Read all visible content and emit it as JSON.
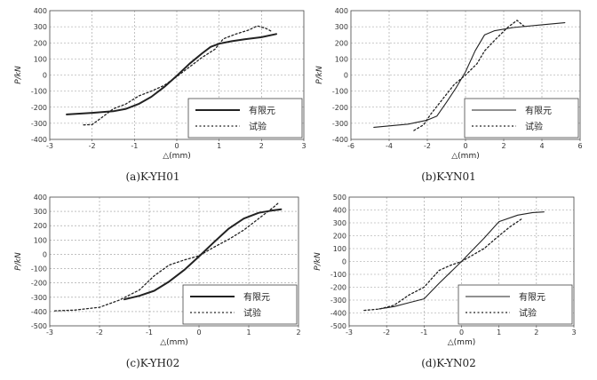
{
  "chart_data": [
    {
      "type": "line",
      "caption": "(a)K-YH01",
      "xlabel": "△(mm)",
      "ylabel": "P/kN",
      "xlim": [
        -3,
        3
      ],
      "ylim": [
        -400,
        400
      ],
      "xticks": [
        -3,
        -2,
        -1,
        0,
        1,
        2,
        3
      ],
      "yticks": [
        -400,
        -300,
        -200,
        -100,
        0,
        100,
        200,
        300,
        400
      ],
      "grid": true,
      "legend_position": "bottom-right",
      "series": [
        {
          "name": "有限元",
          "style": "solid-thick",
          "x": [
            -2.6,
            -2.0,
            -1.5,
            -1.2,
            -0.9,
            -0.6,
            -0.3,
            0.0,
            0.3,
            0.6,
            0.8,
            1.0,
            1.3,
            1.6,
            2.0,
            2.35
          ],
          "y": [
            -245,
            -235,
            -225,
            -210,
            -180,
            -135,
            -75,
            -5,
            70,
            135,
            175,
            195,
            210,
            222,
            235,
            255
          ]
        },
        {
          "name": "试验",
          "style": "dotted",
          "x": [
            -2.2,
            -2.0,
            -1.8,
            -1.5,
            -1.2,
            -0.9,
            -0.6,
            -0.3,
            0.0,
            0.3,
            0.6,
            0.9,
            1.1,
            1.4,
            1.7,
            1.9,
            2.1,
            2.25
          ],
          "y": [
            -310,
            -308,
            -270,
            -210,
            -180,
            -130,
            -100,
            -65,
            -10,
            50,
            110,
            160,
            225,
            255,
            280,
            305,
            290,
            270
          ]
        }
      ]
    },
    {
      "type": "line",
      "caption": "(b)K-YN01",
      "xlabel": "△(mm)",
      "ylabel": "P/kN",
      "xlim": [
        -6,
        6
      ],
      "ylim": [
        -400,
        400
      ],
      "xticks": [
        -6,
        -4,
        -2,
        0,
        2,
        4,
        6
      ],
      "yticks": [
        -400,
        -300,
        -200,
        -100,
        0,
        100,
        200,
        300,
        400
      ],
      "grid": true,
      "legend_position": "bottom-right",
      "series": [
        {
          "name": "有限元",
          "style": "solid",
          "x": [
            -4.8,
            -3.0,
            -2.0,
            -1.5,
            -1.0,
            -0.5,
            0.0,
            0.5,
            1.0,
            1.5,
            2.5,
            4.0,
            5.2
          ],
          "y": [
            -325,
            -305,
            -280,
            -255,
            -170,
            -80,
            20,
            150,
            250,
            275,
            295,
            312,
            325
          ]
        },
        {
          "name": "试验",
          "style": "dotted",
          "x": [
            -2.7,
            -2.2,
            -1.8,
            -1.2,
            -0.6,
            0.0,
            0.6,
            1.0,
            1.6,
            2.2,
            2.7,
            3.1
          ],
          "y": [
            -345,
            -310,
            -240,
            -150,
            -60,
            0,
            70,
            150,
            225,
            295,
            340,
            300
          ]
        }
      ]
    },
    {
      "type": "line",
      "caption": "(c)K-YH02",
      "xlabel": "△(mm)",
      "ylabel": "P/kN",
      "xlim": [
        -3,
        2
      ],
      "ylim": [
        -500,
        400
      ],
      "xticks": [
        -3,
        -2,
        -1,
        0,
        1,
        2
      ],
      "yticks": [
        -500,
        -400,
        -300,
        -200,
        -100,
        0,
        100,
        200,
        300,
        400
      ],
      "grid": true,
      "legend_position": "bottom-right",
      "series": [
        {
          "name": "有限元",
          "style": "solid-thick",
          "x": [
            -1.5,
            -1.2,
            -0.9,
            -0.6,
            -0.3,
            0.0,
            0.3,
            0.6,
            0.9,
            1.2,
            1.45,
            1.65
          ],
          "y": [
            -315,
            -290,
            -255,
            -190,
            -110,
            -15,
            85,
            180,
            250,
            290,
            305,
            315
          ]
        },
        {
          "name": "试验",
          "style": "dotted",
          "x": [
            -2.9,
            -2.5,
            -2.0,
            -1.6,
            -1.2,
            -0.9,
            -0.6,
            -0.3,
            0.0,
            0.3,
            0.6,
            0.9,
            1.2,
            1.5,
            1.6
          ],
          "y": [
            -395,
            -390,
            -370,
            -320,
            -250,
            -150,
            -75,
            -40,
            -10,
            50,
            105,
            170,
            250,
            330,
            360
          ]
        }
      ]
    },
    {
      "type": "line",
      "caption": "(d)K-YN02",
      "xlabel": "△(mm)",
      "ylabel": "P/kN",
      "xlim": [
        -3,
        3
      ],
      "ylim": [
        -500,
        500
      ],
      "xticks": [
        -3,
        -2,
        -1,
        0,
        1,
        2,
        3
      ],
      "yticks": [
        -500,
        -400,
        -300,
        -200,
        -100,
        0,
        100,
        200,
        300,
        400,
        500
      ],
      "grid": true,
      "legend_position": "bottom-right",
      "series": [
        {
          "name": "有限元",
          "style": "solid",
          "x": [
            -2.2,
            -1.8,
            -1.4,
            -1.0,
            -0.6,
            -0.3,
            0.0,
            0.3,
            0.6,
            1.0,
            1.5,
            1.9,
            2.2
          ],
          "y": [
            -368,
            -350,
            -320,
            -290,
            -170,
            -85,
            0,
            90,
            180,
            310,
            360,
            380,
            385
          ]
        },
        {
          "name": "试验",
          "style": "dotted",
          "x": [
            -2.6,
            -2.2,
            -1.8,
            -1.4,
            -1.0,
            -0.6,
            -0.3,
            0.0,
            0.3,
            0.6,
            1.0,
            1.3,
            1.6
          ],
          "y": [
            -380,
            -370,
            -340,
            -260,
            -200,
            -70,
            -30,
            0,
            50,
            100,
            200,
            270,
            330
          ]
        }
      ]
    }
  ]
}
